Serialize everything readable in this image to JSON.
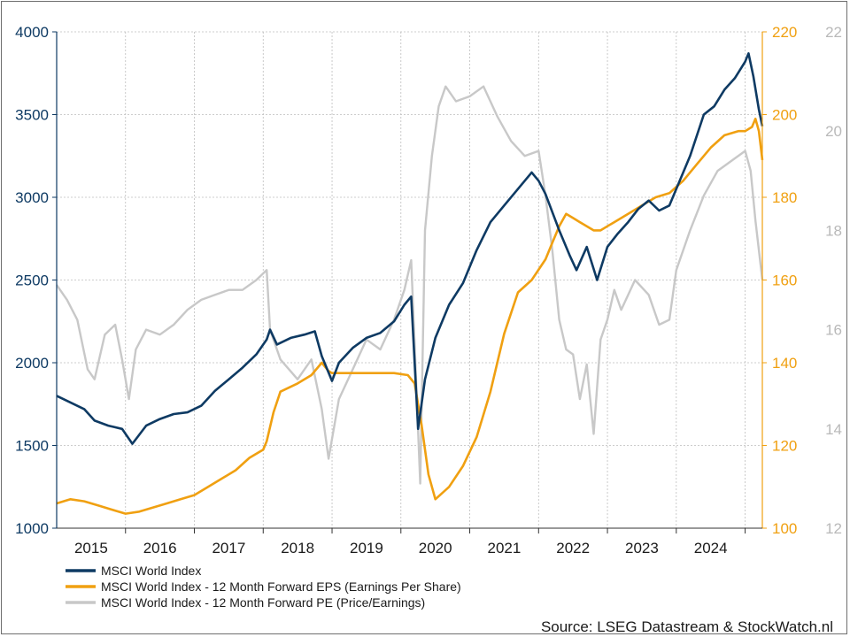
{
  "chart_data": {
    "type": "line",
    "grid": true,
    "x_tick_labels": [
      "2015",
      "2016",
      "2017",
      "2018",
      "2019",
      "2020",
      "2021",
      "2022",
      "2023",
      "2024"
    ],
    "xlim": [
      2015.0,
      2025.25
    ],
    "axes": {
      "left": {
        "range": [
          1000,
          4000
        ],
        "ticks": [
          1000,
          1500,
          2000,
          2500,
          3000,
          3500,
          4000
        ],
        "color": "#0e3a63",
        "series": "index"
      },
      "right1": {
        "range": [
          100,
          220
        ],
        "ticks": [
          100,
          120,
          140,
          160,
          180,
          200,
          220
        ],
        "color": "#f0a011",
        "series": "eps"
      },
      "right2": {
        "range": [
          12,
          22
        ],
        "ticks": [
          12,
          14,
          16,
          18,
          20,
          22
        ],
        "color": "#b9b9b9",
        "series": "pe"
      }
    },
    "series": [
      {
        "id": "index",
        "name": "MSCI World Index",
        "color": "#0e3a63",
        "axis": "left",
        "points": [
          [
            2015.0,
            1800
          ],
          [
            2015.2,
            1760
          ],
          [
            2015.4,
            1720
          ],
          [
            2015.55,
            1650
          ],
          [
            2015.75,
            1620
          ],
          [
            2015.95,
            1600
          ],
          [
            2016.1,
            1510
          ],
          [
            2016.3,
            1620
          ],
          [
            2016.5,
            1660
          ],
          [
            2016.7,
            1690
          ],
          [
            2016.9,
            1700
          ],
          [
            2017.1,
            1740
          ],
          [
            2017.3,
            1830
          ],
          [
            2017.5,
            1900
          ],
          [
            2017.7,
            1970
          ],
          [
            2017.9,
            2050
          ],
          [
            2018.05,
            2140
          ],
          [
            2018.1,
            2200
          ],
          [
            2018.2,
            2110
          ],
          [
            2018.4,
            2150
          ],
          [
            2018.6,
            2170
          ],
          [
            2018.75,
            2190
          ],
          [
            2018.85,
            2040
          ],
          [
            2019.0,
            1890
          ],
          [
            2019.1,
            2000
          ],
          [
            2019.3,
            2090
          ],
          [
            2019.5,
            2150
          ],
          [
            2019.7,
            2180
          ],
          [
            2019.9,
            2250
          ],
          [
            2020.05,
            2350
          ],
          [
            2020.15,
            2400
          ],
          [
            2020.2,
            2000
          ],
          [
            2020.25,
            1600
          ],
          [
            2020.35,
            1900
          ],
          [
            2020.5,
            2150
          ],
          [
            2020.7,
            2350
          ],
          [
            2020.9,
            2480
          ],
          [
            2021.1,
            2680
          ],
          [
            2021.3,
            2850
          ],
          [
            2021.5,
            2950
          ],
          [
            2021.7,
            3050
          ],
          [
            2021.9,
            3150
          ],
          [
            2022.0,
            3100
          ],
          [
            2022.1,
            3020
          ],
          [
            2022.3,
            2800
          ],
          [
            2022.45,
            2650
          ],
          [
            2022.55,
            2560
          ],
          [
            2022.7,
            2700
          ],
          [
            2022.85,
            2500
          ],
          [
            2023.0,
            2700
          ],
          [
            2023.15,
            2780
          ],
          [
            2023.3,
            2850
          ],
          [
            2023.45,
            2930
          ],
          [
            2023.6,
            2980
          ],
          [
            2023.75,
            2920
          ],
          [
            2023.9,
            2950
          ],
          [
            2024.0,
            3050
          ],
          [
            2024.2,
            3250
          ],
          [
            2024.4,
            3500
          ],
          [
            2024.55,
            3550
          ],
          [
            2024.7,
            3650
          ],
          [
            2024.85,
            3720
          ],
          [
            2025.0,
            3820
          ],
          [
            2025.05,
            3870
          ],
          [
            2025.12,
            3730
          ],
          [
            2025.2,
            3530
          ],
          [
            2025.25,
            3430
          ]
        ]
      },
      {
        "id": "eps",
        "name": "MSCI World Index - 12 Month Forward EPS (Earnings Per Share)",
        "color": "#f0a011",
        "axis": "right1",
        "points": [
          [
            2015.0,
            106
          ],
          [
            2015.2,
            107
          ],
          [
            2015.4,
            106.5
          ],
          [
            2015.6,
            105.5
          ],
          [
            2015.8,
            104.5
          ],
          [
            2016.0,
            103.5
          ],
          [
            2016.2,
            104
          ],
          [
            2016.4,
            105
          ],
          [
            2016.6,
            106
          ],
          [
            2016.8,
            107
          ],
          [
            2017.0,
            108
          ],
          [
            2017.2,
            110
          ],
          [
            2017.4,
            112
          ],
          [
            2017.6,
            114
          ],
          [
            2017.8,
            117
          ],
          [
            2018.0,
            119
          ],
          [
            2018.05,
            121
          ],
          [
            2018.15,
            128
          ],
          [
            2018.25,
            133
          ],
          [
            2018.5,
            135
          ],
          [
            2018.7,
            137
          ],
          [
            2018.85,
            140
          ],
          [
            2018.95,
            138
          ],
          [
            2019.0,
            137.5
          ],
          [
            2019.3,
            137.5
          ],
          [
            2019.6,
            137.5
          ],
          [
            2019.9,
            137.5
          ],
          [
            2020.1,
            137
          ],
          [
            2020.2,
            135
          ],
          [
            2020.3,
            125
          ],
          [
            2020.4,
            113
          ],
          [
            2020.5,
            107
          ],
          [
            2020.7,
            110
          ],
          [
            2020.9,
            115
          ],
          [
            2021.1,
            122
          ],
          [
            2021.3,
            133
          ],
          [
            2021.5,
            147
          ],
          [
            2021.7,
            157
          ],
          [
            2021.9,
            160
          ],
          [
            2022.1,
            165
          ],
          [
            2022.2,
            169
          ],
          [
            2022.3,
            173
          ],
          [
            2022.4,
            176
          ],
          [
            2022.5,
            175
          ],
          [
            2022.6,
            174
          ],
          [
            2022.7,
            173
          ],
          [
            2022.8,
            172
          ],
          [
            2022.9,
            172
          ],
          [
            2023.0,
            173
          ],
          [
            2023.1,
            174
          ],
          [
            2023.3,
            176
          ],
          [
            2023.5,
            178
          ],
          [
            2023.7,
            180
          ],
          [
            2023.9,
            181
          ],
          [
            2024.1,
            184
          ],
          [
            2024.3,
            188
          ],
          [
            2024.5,
            192
          ],
          [
            2024.7,
            195
          ],
          [
            2024.9,
            196
          ],
          [
            2025.0,
            196
          ],
          [
            2025.1,
            197
          ],
          [
            2025.15,
            199
          ],
          [
            2025.2,
            196
          ],
          [
            2025.25,
            189
          ]
        ]
      },
      {
        "id": "pe",
        "name": "MSCI World Index - 12 Month Forward PE (Price/Earnings)",
        "color": "#c8c8c8",
        "axis": "right2",
        "points": [
          [
            2015.0,
            16.9
          ],
          [
            2015.15,
            16.6
          ],
          [
            2015.3,
            16.2
          ],
          [
            2015.45,
            15.2
          ],
          [
            2015.55,
            15.0
          ],
          [
            2015.7,
            15.9
          ],
          [
            2015.85,
            16.1
          ],
          [
            2015.95,
            15.4
          ],
          [
            2016.05,
            14.6
          ],
          [
            2016.15,
            15.6
          ],
          [
            2016.3,
            16.0
          ],
          [
            2016.5,
            15.9
          ],
          [
            2016.7,
            16.1
          ],
          [
            2016.9,
            16.4
          ],
          [
            2017.1,
            16.6
          ],
          [
            2017.3,
            16.7
          ],
          [
            2017.5,
            16.8
          ],
          [
            2017.7,
            16.8
          ],
          [
            2017.9,
            17.0
          ],
          [
            2018.05,
            17.2
          ],
          [
            2018.1,
            16.0
          ],
          [
            2018.25,
            15.4
          ],
          [
            2018.5,
            15.0
          ],
          [
            2018.7,
            15.4
          ],
          [
            2018.85,
            14.4
          ],
          [
            2018.95,
            13.4
          ],
          [
            2019.1,
            14.6
          ],
          [
            2019.3,
            15.2
          ],
          [
            2019.5,
            15.8
          ],
          [
            2019.7,
            15.6
          ],
          [
            2019.9,
            16.2
          ],
          [
            2020.05,
            16.8
          ],
          [
            2020.15,
            17.4
          ],
          [
            2020.22,
            15.0
          ],
          [
            2020.28,
            12.9
          ],
          [
            2020.35,
            18.0
          ],
          [
            2020.45,
            19.5
          ],
          [
            2020.55,
            20.5
          ],
          [
            2020.65,
            20.9
          ],
          [
            2020.8,
            20.6
          ],
          [
            2021.0,
            20.7
          ],
          [
            2021.2,
            20.9
          ],
          [
            2021.4,
            20.3
          ],
          [
            2021.6,
            19.8
          ],
          [
            2021.8,
            19.5
          ],
          [
            2022.0,
            19.6
          ],
          [
            2022.1,
            18.7
          ],
          [
            2022.2,
            17.6
          ],
          [
            2022.3,
            16.2
          ],
          [
            2022.4,
            15.6
          ],
          [
            2022.5,
            15.5
          ],
          [
            2022.6,
            14.6
          ],
          [
            2022.7,
            15.3
          ],
          [
            2022.8,
            13.9
          ],
          [
            2022.9,
            15.8
          ],
          [
            2023.0,
            16.2
          ],
          [
            2023.1,
            16.8
          ],
          [
            2023.2,
            16.4
          ],
          [
            2023.4,
            17.0
          ],
          [
            2023.6,
            16.7
          ],
          [
            2023.75,
            16.1
          ],
          [
            2023.9,
            16.2
          ],
          [
            2024.0,
            17.2
          ],
          [
            2024.2,
            18.0
          ],
          [
            2024.4,
            18.7
          ],
          [
            2024.6,
            19.2
          ],
          [
            2024.8,
            19.4
          ],
          [
            2025.0,
            19.6
          ],
          [
            2025.08,
            19.2
          ],
          [
            2025.15,
            18.2
          ],
          [
            2025.2,
            17.6
          ],
          [
            2025.25,
            17.0
          ]
        ]
      }
    ],
    "legend_placement": "bottom-left",
    "source": "Source: LSEG Datastream & StockWatch.nl"
  }
}
